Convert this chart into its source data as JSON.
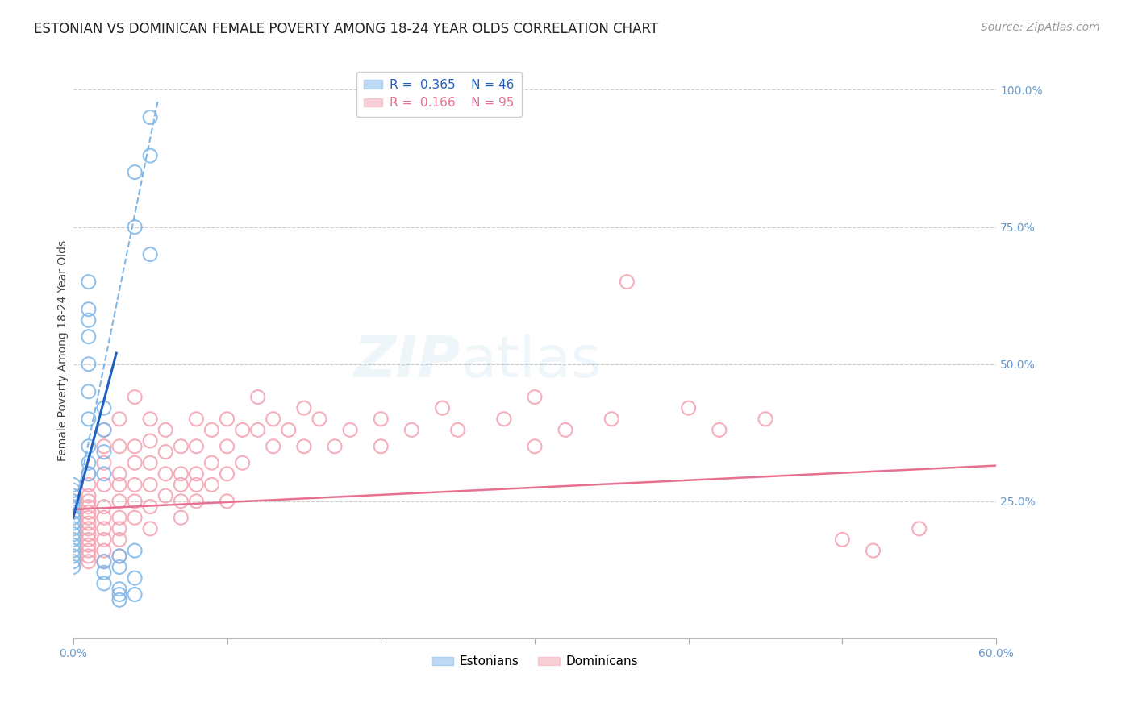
{
  "title": "ESTONIAN VS DOMINICAN FEMALE POVERTY AMONG 18-24 YEAR OLDS CORRELATION CHART",
  "source": "Source: ZipAtlas.com",
  "ylabel": "Female Poverty Among 18-24 Year Olds",
  "watermark_zip": "ZIP",
  "watermark_atlas": "atlas",
  "xlim": [
    0.0,
    0.6
  ],
  "ylim": [
    0.0,
    1.05
  ],
  "xticks": [
    0.0,
    0.1,
    0.2,
    0.3,
    0.4,
    0.5,
    0.6
  ],
  "xticklabels": [
    "0.0%",
    "",
    "",
    "",
    "",
    "",
    "60.0%"
  ],
  "yticks_right": [
    0.0,
    0.25,
    0.5,
    0.75,
    1.0
  ],
  "yticklabels_right": [
    "",
    "25.0%",
    "50.0%",
    "75.0%",
    "100.0%"
  ],
  "legend_label_blue": "Estonians",
  "legend_label_pink": "Dominicans",
  "blue_color": "#7EB6E8",
  "pink_color": "#F5A0B0",
  "blue_line_color": "#2060C0",
  "pink_line_color": "#E87090",
  "blue_scatter": [
    [
      0.0,
      0.21
    ],
    [
      0.0,
      0.2
    ],
    [
      0.0,
      0.19
    ],
    [
      0.0,
      0.18
    ],
    [
      0.0,
      0.17
    ],
    [
      0.0,
      0.16
    ],
    [
      0.0,
      0.15
    ],
    [
      0.0,
      0.14
    ],
    [
      0.0,
      0.13
    ],
    [
      0.0,
      0.26
    ],
    [
      0.0,
      0.25
    ],
    [
      0.0,
      0.24
    ],
    [
      0.0,
      0.23
    ],
    [
      0.0,
      0.22
    ],
    [
      0.0,
      0.28
    ],
    [
      0.0,
      0.27
    ],
    [
      0.01,
      0.3
    ],
    [
      0.01,
      0.32
    ],
    [
      0.01,
      0.35
    ],
    [
      0.01,
      0.4
    ],
    [
      0.01,
      0.45
    ],
    [
      0.01,
      0.5
    ],
    [
      0.01,
      0.55
    ],
    [
      0.01,
      0.6
    ],
    [
      0.01,
      0.65
    ],
    [
      0.01,
      0.58
    ],
    [
      0.02,
      0.42
    ],
    [
      0.02,
      0.38
    ],
    [
      0.02,
      0.34
    ],
    [
      0.02,
      0.3
    ],
    [
      0.02,
      0.1
    ],
    [
      0.02,
      0.12
    ],
    [
      0.02,
      0.14
    ],
    [
      0.03,
      0.13
    ],
    [
      0.03,
      0.09
    ],
    [
      0.03,
      0.08
    ],
    [
      0.03,
      0.07
    ],
    [
      0.03,
      0.15
    ],
    [
      0.04,
      0.16
    ],
    [
      0.04,
      0.11
    ],
    [
      0.04,
      0.08
    ],
    [
      0.04,
      0.75
    ],
    [
      0.04,
      0.85
    ],
    [
      0.05,
      0.95
    ],
    [
      0.05,
      0.88
    ],
    [
      0.05,
      0.7
    ]
  ],
  "pink_scatter": [
    [
      0.01,
      0.2
    ],
    [
      0.01,
      0.22
    ],
    [
      0.01,
      0.18
    ],
    [
      0.01,
      0.24
    ],
    [
      0.01,
      0.26
    ],
    [
      0.01,
      0.16
    ],
    [
      0.01,
      0.25
    ],
    [
      0.01,
      0.23
    ],
    [
      0.01,
      0.28
    ],
    [
      0.01,
      0.3
    ],
    [
      0.01,
      0.19
    ],
    [
      0.01,
      0.21
    ],
    [
      0.01,
      0.17
    ],
    [
      0.01,
      0.15
    ],
    [
      0.01,
      0.14
    ],
    [
      0.02,
      0.22
    ],
    [
      0.02,
      0.24
    ],
    [
      0.02,
      0.2
    ],
    [
      0.02,
      0.18
    ],
    [
      0.02,
      0.28
    ],
    [
      0.02,
      0.32
    ],
    [
      0.02,
      0.35
    ],
    [
      0.02,
      0.38
    ],
    [
      0.02,
      0.16
    ],
    [
      0.02,
      0.14
    ],
    [
      0.03,
      0.4
    ],
    [
      0.03,
      0.35
    ],
    [
      0.03,
      0.3
    ],
    [
      0.03,
      0.28
    ],
    [
      0.03,
      0.25
    ],
    [
      0.03,
      0.22
    ],
    [
      0.03,
      0.2
    ],
    [
      0.03,
      0.18
    ],
    [
      0.03,
      0.15
    ],
    [
      0.04,
      0.35
    ],
    [
      0.04,
      0.32
    ],
    [
      0.04,
      0.28
    ],
    [
      0.04,
      0.25
    ],
    [
      0.04,
      0.22
    ],
    [
      0.04,
      0.44
    ],
    [
      0.05,
      0.4
    ],
    [
      0.05,
      0.36
    ],
    [
      0.05,
      0.32
    ],
    [
      0.05,
      0.28
    ],
    [
      0.05,
      0.24
    ],
    [
      0.05,
      0.2
    ],
    [
      0.06,
      0.38
    ],
    [
      0.06,
      0.34
    ],
    [
      0.06,
      0.3
    ],
    [
      0.06,
      0.26
    ],
    [
      0.07,
      0.35
    ],
    [
      0.07,
      0.3
    ],
    [
      0.07,
      0.28
    ],
    [
      0.07,
      0.25
    ],
    [
      0.07,
      0.22
    ],
    [
      0.08,
      0.4
    ],
    [
      0.08,
      0.35
    ],
    [
      0.08,
      0.3
    ],
    [
      0.08,
      0.28
    ],
    [
      0.08,
      0.25
    ],
    [
      0.09,
      0.38
    ],
    [
      0.09,
      0.32
    ],
    [
      0.09,
      0.28
    ],
    [
      0.1,
      0.4
    ],
    [
      0.1,
      0.35
    ],
    [
      0.1,
      0.3
    ],
    [
      0.1,
      0.25
    ],
    [
      0.11,
      0.38
    ],
    [
      0.11,
      0.32
    ],
    [
      0.12,
      0.44
    ],
    [
      0.12,
      0.38
    ],
    [
      0.13,
      0.4
    ],
    [
      0.13,
      0.35
    ],
    [
      0.14,
      0.38
    ],
    [
      0.15,
      0.42
    ],
    [
      0.15,
      0.35
    ],
    [
      0.16,
      0.4
    ],
    [
      0.17,
      0.35
    ],
    [
      0.18,
      0.38
    ],
    [
      0.2,
      0.4
    ],
    [
      0.2,
      0.35
    ],
    [
      0.22,
      0.38
    ],
    [
      0.24,
      0.42
    ],
    [
      0.25,
      0.38
    ],
    [
      0.28,
      0.4
    ],
    [
      0.3,
      0.44
    ],
    [
      0.3,
      0.35
    ],
    [
      0.32,
      0.38
    ],
    [
      0.35,
      0.4
    ],
    [
      0.36,
      0.65
    ],
    [
      0.4,
      0.42
    ],
    [
      0.42,
      0.38
    ],
    [
      0.45,
      0.4
    ],
    [
      0.5,
      0.18
    ],
    [
      0.52,
      0.16
    ],
    [
      0.55,
      0.2
    ]
  ],
  "blue_trend_line": {
    "x": [
      0.0,
      0.028
    ],
    "y": [
      0.22,
      0.52
    ]
  },
  "blue_trend_dashed": {
    "x": [
      0.0,
      0.055
    ],
    "y": [
      0.22,
      0.98
    ]
  },
  "pink_trend_line": {
    "x": [
      0.0,
      0.6
    ],
    "y": [
      0.235,
      0.315
    ]
  },
  "title_fontsize": 12,
  "source_fontsize": 10,
  "axis_label_fontsize": 10,
  "tick_fontsize": 10,
  "legend_fontsize": 11,
  "watermark_fontsize": 52,
  "watermark_alpha": 0.13,
  "background_color": "#FFFFFF",
  "grid_color": "#CCCCCC",
  "axis_color": "#6699CC",
  "right_yaxis_color": "#6699CC"
}
